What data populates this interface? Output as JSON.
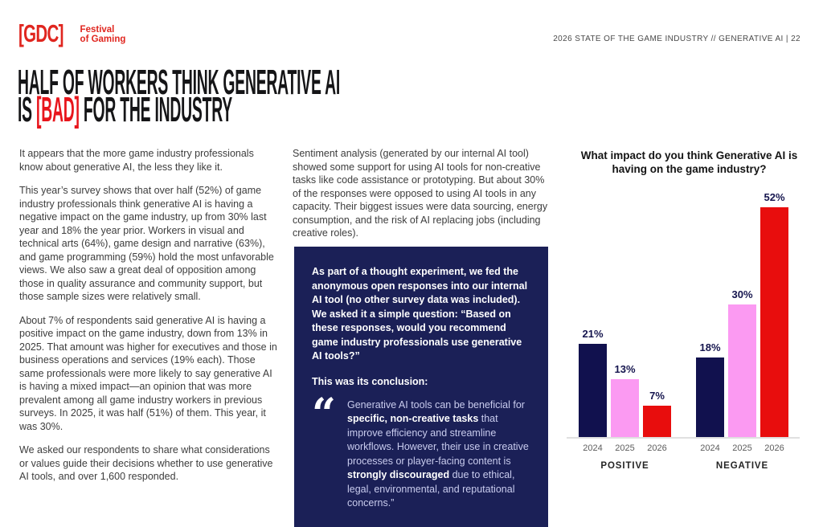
{
  "colors": {
    "brand_red": "#E0261F",
    "accent_red": "#E8151C",
    "panel_bg": "#1B2057",
    "headline": "#151517",
    "body_text": "#3D3D3D"
  },
  "header": {
    "logo_mark": "[GDC]",
    "logo_line1": "Festival",
    "logo_line2": "of Gaming",
    "meta": "2026 STATE OF THE GAME INDUSTRY // GENERATIVE AI | 22"
  },
  "headline": {
    "line1": "HALF OF WORKERS THINK GENERATIVE AI",
    "line2_pre": "IS ",
    "line2_accent": "[BAD]",
    "line2_post": " FOR THE INDUSTRY"
  },
  "left_column": {
    "p1": "It appears that the more game industry professionals know about generative AI, the less they like it.",
    "p2": "This year’s survey shows that over half (52%) of game industry professionals think generative AI is having a negative impact on the game industry, up from 30% last year and 18% the year prior. Workers in visual and technical arts (64%), game design and narrative (63%), and game programming (59%) hold the most unfavorable views. We also saw a great deal of opposition among those in quality assurance and community support, but those sample sizes were relatively small.",
    "p3": "About 7% of respondents said generative AI is having a positive impact on the game industry, down from 13% in 2025. That amount was higher for executives and those in business operations and services (19% each). Those same professionals were more likely to say generative AI is having a mixed impact—an opinion that was more prevalent among all game industry workers in previous surveys. In 2025, it was half (51%) of them. This year, it was 30%.",
    "p4": "We asked our respondents to share what considerations or values guide their decisions whether to use generative AI tools, and over 1,600 responded."
  },
  "middle_column": {
    "intro": "Sentiment analysis (generated by our internal AI tool) showed some support for using AI tools for non-creative tasks like code assistance or prototyping. But about 30% of the responses were opposed to using AI tools in any capacity. Their biggest issues were data sourcing, energy consumption, and the risk of AI replacing jobs (including creative roles)."
  },
  "panel": {
    "paragraph": "As part of a thought experiment, we fed the anonymous open responses into our internal AI tool (no other survey data was included). We asked it a simple question: “Based on these responses, would you recommend game industry professionals use generative AI tools?”",
    "conclusion_label": "This was its conclusion:",
    "quote_glyph": "“",
    "quote_segments": [
      {
        "text": "Generative AI tools can be beneficial for ",
        "bold": false
      },
      {
        "text": "specific, non-creative tasks",
        "bold": true
      },
      {
        "text": " that improve efficiency and streamline workflows. However, their use in creative processes or player-facing content is ",
        "bold": false
      },
      {
        "text": "strongly discouraged",
        "bold": true
      },
      {
        "text": " due to ethical, legal, environmental, and reputational concerns.”",
        "bold": false
      }
    ]
  },
  "chart_data": {
    "type": "bar",
    "title": "What impact do you think Generative AI is having on the game industry?",
    "unit": "%",
    "ylim": [
      0,
      52
    ],
    "categories": [
      "2024",
      "2025",
      "2026"
    ],
    "bar_colors": [
      "#11114E",
      "#FB9AF2",
      "#E80D0D"
    ],
    "groups": [
      {
        "label": "POSITIVE",
        "categories": [
          "2024",
          "2025",
          "2026"
        ],
        "values": [
          21,
          13,
          7
        ]
      },
      {
        "label": "NEGATIVE",
        "categories": [
          "2024",
          "2025",
          "2026"
        ],
        "values": [
          18,
          30,
          52
        ]
      }
    ],
    "value_label_color": "#15154E",
    "axis_line_color": "#E0E0E0",
    "grid": false,
    "legend": "none"
  }
}
